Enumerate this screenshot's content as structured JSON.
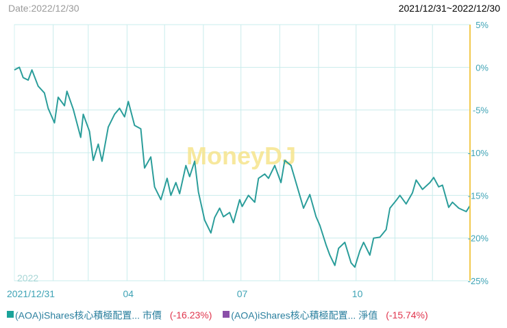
{
  "header": {
    "date_label": "Date:2022/12/30",
    "range_label": "2021/12/31~2022/12/30"
  },
  "watermark": "MoneyDJ",
  "year_label": "2022",
  "legend": [
    {
      "label": "(AOA)iShares核心積極配置... 市價",
      "value": "(-16.23%)",
      "color": "#1aa39a"
    },
    {
      "label": "(AOA)iShares核心積極配置... 淨值",
      "value": "(-15.74%)",
      "color": "#8a4fa8"
    }
  ],
  "colors": {
    "line": "#2a9d9a",
    "grid": "#c9ecec",
    "right_axis": "#f2c94c",
    "tick_text": "#3ea3b5",
    "negative": "#e0344c"
  },
  "chart_data": {
    "type": "line",
    "title": "",
    "xlabel": "",
    "ylabel": "",
    "ylim": [
      -25,
      5
    ],
    "y_ticks": [
      {
        "value": 5,
        "label": "5%"
      },
      {
        "value": 0,
        "label": "0%"
      },
      {
        "value": -5,
        "label": "-5%"
      },
      {
        "value": -10,
        "label": "-10%"
      },
      {
        "value": -15,
        "label": "-15%"
      },
      {
        "value": -20,
        "label": "-20%"
      },
      {
        "value": -25,
        "label": "-25%"
      }
    ],
    "x_ticks": [
      {
        "value": "2021-12-31",
        "label": "2021/12/31"
      },
      {
        "value": "2022-04-01",
        "label": "04"
      },
      {
        "value": "2022-07-01",
        "label": "07"
      },
      {
        "value": "2022-10-01",
        "label": "10"
      }
    ],
    "month_grid": [
      "2022-01-31",
      "2022-02-28",
      "2022-03-31",
      "2022-04-30",
      "2022-05-31",
      "2022-06-30",
      "2022-07-31",
      "2022-08-31",
      "2022-09-30",
      "2022-10-31",
      "2022-11-30"
    ],
    "series": [
      {
        "color": "#2a9d9a",
        "x": [
          "2021-12-31",
          "2022-01-04",
          "2022-01-07",
          "2022-01-11",
          "2022-01-14",
          "2022-01-19",
          "2022-01-24",
          "2022-01-27",
          "2022-02-01",
          "2022-02-04",
          "2022-02-09",
          "2022-02-11",
          "2022-02-16",
          "2022-02-22",
          "2022-02-24",
          "2022-03-01",
          "2022-03-04",
          "2022-03-08",
          "2022-03-11",
          "2022-03-16",
          "2022-03-21",
          "2022-03-25",
          "2022-03-29",
          "2022-04-01",
          "2022-04-06",
          "2022-04-11",
          "2022-04-14",
          "2022-04-19",
          "2022-04-22",
          "2022-04-27",
          "2022-05-02",
          "2022-05-05",
          "2022-05-09",
          "2022-05-12",
          "2022-05-17",
          "2022-05-20",
          "2022-05-24",
          "2022-05-27",
          "2022-06-01",
          "2022-06-06",
          "2022-06-09",
          "2022-06-13",
          "2022-06-16",
          "2022-06-21",
          "2022-06-24",
          "2022-06-29",
          "2022-07-01",
          "2022-07-06",
          "2022-07-11",
          "2022-07-14",
          "2022-07-19",
          "2022-07-22",
          "2022-07-27",
          "2022-08-01",
          "2022-08-04",
          "2022-08-09",
          "2022-08-12",
          "2022-08-16",
          "2022-08-19",
          "2022-08-24",
          "2022-08-29",
          "2022-09-01",
          "2022-09-06",
          "2022-09-09",
          "2022-09-13",
          "2022-09-16",
          "2022-09-21",
          "2022-09-26",
          "2022-09-29",
          "2022-10-03",
          "2022-10-06",
          "2022-10-11",
          "2022-10-14",
          "2022-10-19",
          "2022-10-24",
          "2022-10-27",
          "2022-11-01",
          "2022-11-04",
          "2022-11-09",
          "2022-11-14",
          "2022-11-17",
          "2022-11-22",
          "2022-11-28",
          "2022-12-01",
          "2022-12-05",
          "2022-12-08",
          "2022-12-13",
          "2022-12-16",
          "2022-12-21",
          "2022-12-27",
          "2022-12-30"
        ],
        "values": [
          -0.3,
          0,
          -1.2,
          -1.5,
          -0.3,
          -2.2,
          -3.0,
          -4.8,
          -6.5,
          -3.5,
          -4.5,
          -2.8,
          -4.9,
          -8.2,
          -5.5,
          -7.5,
          -10.9,
          -9.0,
          -11.0,
          -7.0,
          -5.5,
          -4.8,
          -5.8,
          -4.0,
          -6.8,
          -7.2,
          -11.8,
          -10.5,
          -14.0,
          -15.5,
          -13.0,
          -15.0,
          -13.5,
          -14.8,
          -11.5,
          -12.8,
          -11.0,
          -14.6,
          -17.9,
          -19.4,
          -17.6,
          -16.5,
          -17.5,
          -17.0,
          -18.2,
          -15.5,
          -16.3,
          -15.0,
          -15.8,
          -13.0,
          -12.5,
          -13.0,
          -11.5,
          -13.5,
          -10.9,
          -11.5,
          -13.0,
          -15.0,
          -16.5,
          -14.9,
          -17.5,
          -18.5,
          -20.8,
          -22.0,
          -23.2,
          -21.2,
          -20.5,
          -22.9,
          -23.4,
          -21.5,
          -20.5,
          -22.0,
          -20.0,
          -19.9,
          -19.0,
          -16.5,
          -15.6,
          -15.0,
          -16.0,
          -14.7,
          -13.2,
          -14.3,
          -13.5,
          -12.9,
          -14.0,
          -13.8,
          -16.4,
          -15.8,
          -16.5,
          -16.9,
          -16.2
        ]
      }
    ],
    "grid": true,
    "legend_position": "bottom"
  }
}
